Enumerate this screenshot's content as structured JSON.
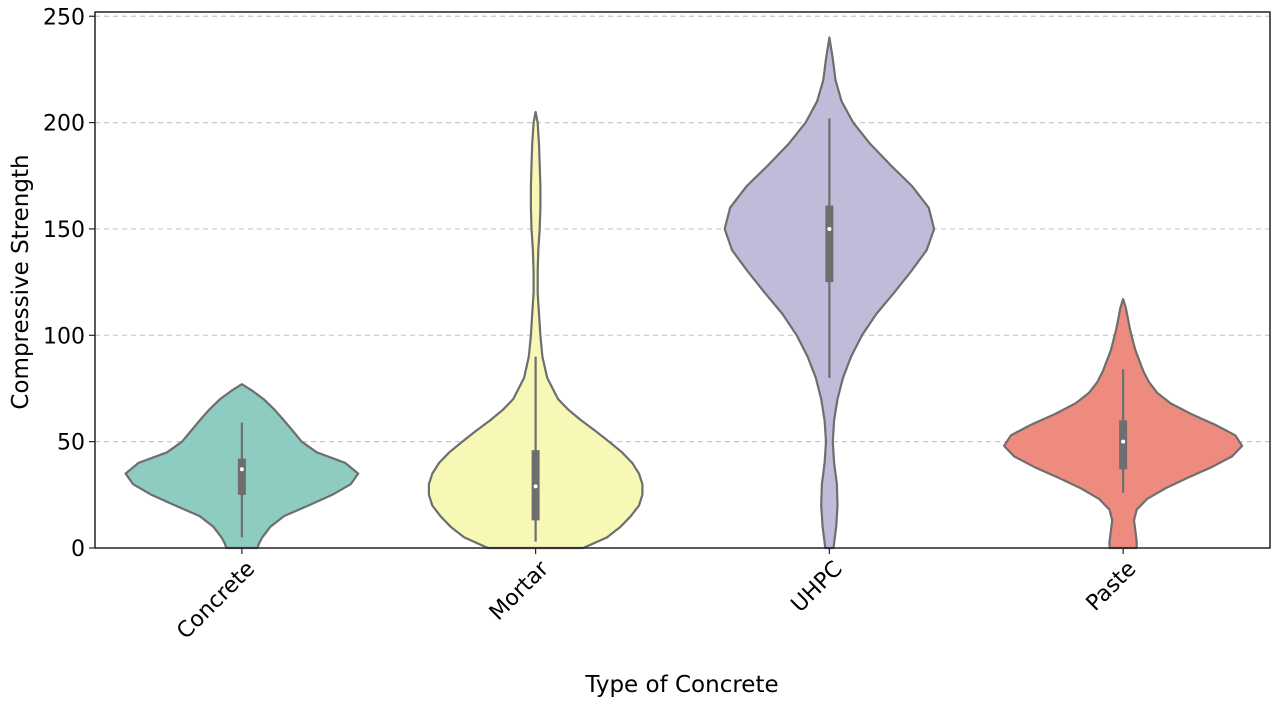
{
  "chart_data": {
    "type": "violin",
    "xlabel": "Type of Concrete",
    "ylabel": "Compressive Strength",
    "ylim": [
      0,
      252
    ],
    "yticks": [
      0,
      50,
      100,
      150,
      200,
      250
    ],
    "ytick_labels": [
      "0",
      "50",
      "100",
      "150",
      "200",
      "250"
    ],
    "grid": "y-dashed",
    "categories": [
      "Concrete",
      "Mortar",
      "UHPC",
      "Paste"
    ],
    "colors": [
      "#8ecbc0",
      "#f7f7b6",
      "#bfbbd9",
      "#ee8b7f"
    ],
    "series": [
      {
        "category": "Concrete",
        "min": 0,
        "max": 77,
        "whisker_low": 5,
        "whisker_high": 59,
        "q1": 25,
        "median": 37,
        "q3": 42,
        "density_y": [
          0,
          2,
          5,
          10,
          15,
          20,
          25,
          30,
          35,
          40,
          45,
          50,
          55,
          60,
          65,
          70,
          74,
          77
        ],
        "density_w": [
          0.23,
          0.25,
          0.3,
          0.42,
          0.62,
          0.98,
          1.33,
          1.6,
          1.71,
          1.52,
          1.1,
          0.88,
          0.75,
          0.62,
          0.48,
          0.32,
          0.15,
          0.0
        ]
      },
      {
        "category": "Mortar",
        "min": 0,
        "max": 205,
        "whisker_low": 3,
        "whisker_high": 90,
        "q1": 13,
        "median": 29,
        "q3": 46,
        "density_y": [
          0,
          5,
          10,
          15,
          20,
          25,
          30,
          35,
          40,
          45,
          50,
          55,
          60,
          65,
          70,
          80,
          90,
          100,
          110,
          115,
          120,
          130,
          140,
          150,
          160,
          170,
          180,
          190,
          195,
          200,
          205
        ],
        "density_w": [
          0.7,
          1.05,
          1.25,
          1.4,
          1.52,
          1.57,
          1.57,
          1.52,
          1.42,
          1.27,
          1.08,
          0.88,
          0.67,
          0.48,
          0.33,
          0.17,
          0.1,
          0.07,
          0.05,
          0.04,
          0.03,
          0.03,
          0.04,
          0.06,
          0.07,
          0.07,
          0.06,
          0.05,
          0.04,
          0.03,
          0.0
        ]
      },
      {
        "category": "UHPC",
        "min": 0,
        "max": 240,
        "whisker_low": 80,
        "whisker_high": 202,
        "q1": 125,
        "median": 150,
        "q3": 161,
        "density_y": [
          0,
          10,
          20,
          30,
          40,
          50,
          60,
          70,
          80,
          90,
          100,
          110,
          120,
          130,
          140,
          150,
          160,
          170,
          180,
          190,
          200,
          210,
          220,
          230,
          240
        ],
        "density_w": [
          0.06,
          0.1,
          0.12,
          0.11,
          0.07,
          0.05,
          0.07,
          0.12,
          0.2,
          0.32,
          0.48,
          0.69,
          0.95,
          1.2,
          1.43,
          1.54,
          1.46,
          1.22,
          0.9,
          0.6,
          0.35,
          0.18,
          0.09,
          0.05,
          0.0
        ]
      },
      {
        "category": "Paste",
        "min": 0,
        "max": 117,
        "whisker_low": 26,
        "whisker_high": 84,
        "q1": 37,
        "median": 50,
        "q3": 60,
        "density_y": [
          0,
          3,
          8,
          13,
          18,
          23,
          28,
          33,
          38,
          43,
          48,
          53,
          58,
          63,
          68,
          73,
          78,
          83,
          88,
          93,
          98,
          103,
          108,
          113,
          117
        ],
        "density_w": [
          0.2,
          0.2,
          0.18,
          0.16,
          0.2,
          0.35,
          0.62,
          0.95,
          1.3,
          1.6,
          1.75,
          1.65,
          1.35,
          1.0,
          0.7,
          0.5,
          0.38,
          0.3,
          0.24,
          0.18,
          0.14,
          0.1,
          0.07,
          0.04,
          0.0
        ]
      }
    ]
  }
}
